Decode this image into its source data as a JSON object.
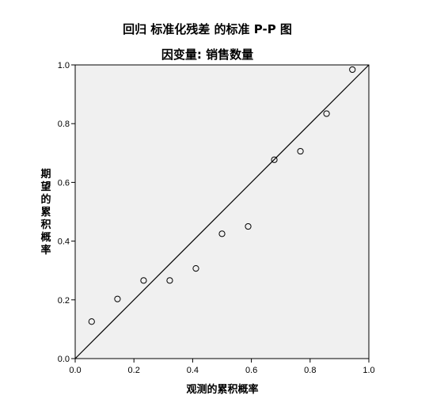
{
  "chart_data": {
    "type": "scatter",
    "title": "回归 标准化残差 的标准 P-P 图",
    "subtitle": "因变量: 销售数量",
    "xlabel": "观测的累积概率",
    "ylabel": "期望的累积概率",
    "xlim": [
      0.0,
      1.0
    ],
    "ylim": [
      0.0,
      1.0
    ],
    "xticks": [
      "0.0",
      "0.2",
      "0.4",
      "0.6",
      "0.8",
      "1.0"
    ],
    "yticks": [
      "0.0",
      "0.2",
      "0.4",
      "0.6",
      "0.8",
      "1.0"
    ],
    "reference_line": {
      "from": [
        0,
        0
      ],
      "to": [
        1,
        1
      ]
    },
    "points": [
      {
        "x": 0.056,
        "y": 0.126
      },
      {
        "x": 0.144,
        "y": 0.203
      },
      {
        "x": 0.233,
        "y": 0.266
      },
      {
        "x": 0.322,
        "y": 0.266
      },
      {
        "x": 0.411,
        "y": 0.307
      },
      {
        "x": 0.5,
        "y": 0.425
      },
      {
        "x": 0.589,
        "y": 0.45
      },
      {
        "x": 0.678,
        "y": 0.677
      },
      {
        "x": 0.767,
        "y": 0.706
      },
      {
        "x": 0.856,
        "y": 0.834
      },
      {
        "x": 0.944,
        "y": 0.984
      }
    ],
    "plot_background": "#f0f0f0",
    "marker": "open-circle",
    "grid": false
  }
}
